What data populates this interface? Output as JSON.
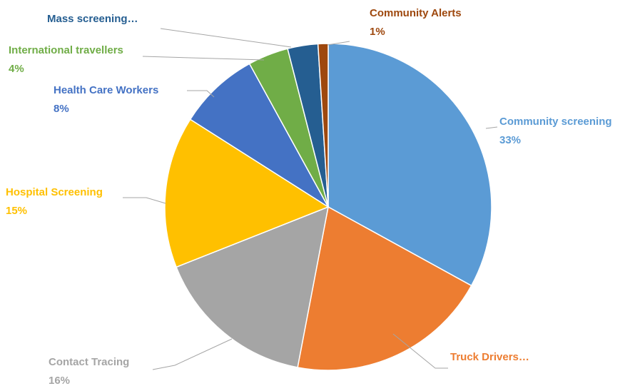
{
  "chart_data": {
    "type": "pie",
    "categories": [
      "Community screening",
      "Truck Drivers…",
      "Contact Tracing",
      "Hospital Screening",
      "Health Care Workers",
      "International travellers",
      "Mass screening…",
      "Community Alerts"
    ],
    "values": [
      33,
      20,
      16,
      15,
      8,
      4,
      3,
      1
    ],
    "value_labels": [
      "33%",
      null,
      "16%",
      "15%",
      "8%",
      "4%",
      null,
      "1%"
    ],
    "colors": [
      "#5b9bd5",
      "#ed7d31",
      "#a5a5a5",
      "#ffc000",
      "#4472c4",
      "#70ad47",
      "#255e91",
      "#9e480e"
    ]
  }
}
